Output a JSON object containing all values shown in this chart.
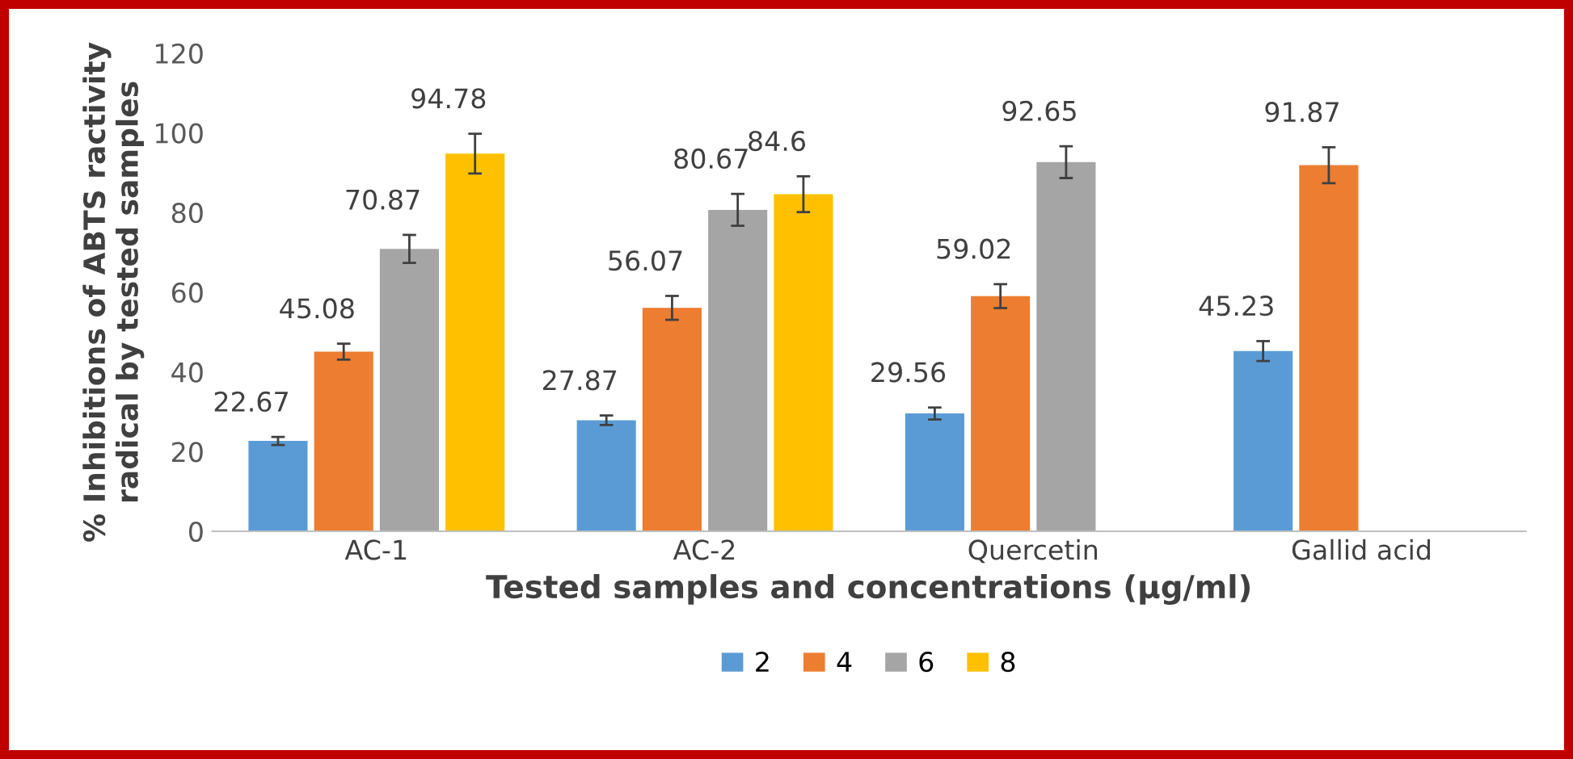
{
  "chart_data": {
    "type": "bar",
    "xlabel": "Tested samples and concentrations (µg/ml)",
    "ylabel": "% Inhibitions of ABTS ractivity\nradical by tested samples",
    "categories": [
      "AC-1",
      "AC-2",
      "Quercetin",
      "Gallid acid"
    ],
    "series": [
      {
        "name": "2",
        "color": "#5b9bd5",
        "values": [
          22.67,
          27.87,
          29.56,
          45.23
        ],
        "errors": [
          1,
          1.2,
          1.5,
          2.5
        ]
      },
      {
        "name": "4",
        "color": "#ed7d31",
        "values": [
          45.08,
          56.07,
          59.02,
          91.87
        ],
        "errors": [
          2,
          3,
          3,
          4.5
        ]
      },
      {
        "name": "6",
        "color": "#a5a5a5",
        "values": [
          70.87,
          80.67,
          92.65,
          null
        ],
        "errors": [
          3.5,
          4,
          4,
          null
        ]
      },
      {
        "name": "8",
        "color": "#ffc000",
        "values": [
          94.78,
          84.6,
          null,
          null
        ],
        "errors": [
          5,
          4.5,
          null,
          null
        ]
      }
    ],
    "ylim": [
      0,
      120
    ],
    "yticks": [
      0,
      20,
      40,
      60,
      80,
      100,
      120
    ],
    "grid": false,
    "legend": "bottom",
    "data_labels": true
  }
}
